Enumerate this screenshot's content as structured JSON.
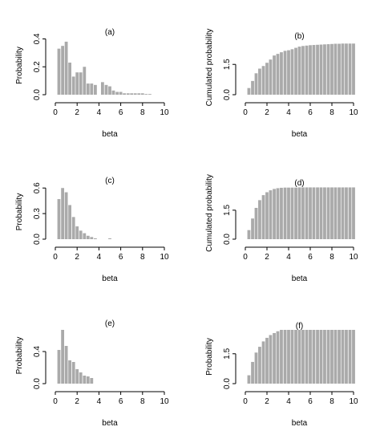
{
  "chart_data": [
    {
      "id": "a",
      "type": "bar",
      "title": "(a)",
      "xlabel": "beta",
      "ylabel": "Probability",
      "xlim": [
        0,
        10
      ],
      "ylim": [
        0,
        0.42
      ],
      "xticks": [
        0,
        2,
        4,
        6,
        8,
        10
      ],
      "yticks": [
        0.0,
        0.2,
        0.4
      ],
      "ytick_labels": [
        "0.0",
        "0.2",
        "0.4"
      ],
      "bar_color": "#aaaaaa",
      "x": [
        0.33,
        0.67,
        1.0,
        1.33,
        1.67,
        2.0,
        2.33,
        2.67,
        3.0,
        3.33,
        3.67,
        4.0,
        4.33,
        4.67,
        5.0,
        5.33,
        5.67,
        6.0,
        6.33,
        6.67,
        7.0,
        7.33,
        7.67,
        8.0,
        8.33,
        8.67
      ],
      "values": [
        0.33,
        0.35,
        0.38,
        0.23,
        0.13,
        0.16,
        0.16,
        0.2,
        0.08,
        0.08,
        0.07,
        0.0,
        0.09,
        0.07,
        0.06,
        0.03,
        0.02,
        0.02,
        0.01,
        0.01,
        0.01,
        0.01,
        0.01,
        0.01,
        0.005,
        0.005
      ]
    },
    {
      "id": "b",
      "type": "bar",
      "title": "(b)",
      "xlabel": "beta",
      "ylabel": "Cumulated probability",
      "xlim": [
        0,
        10
      ],
      "ylim": [
        0,
        2.7
      ],
      "xticks": [
        0,
        2,
        4,
        6,
        8,
        10
      ],
      "yticks": [
        0.0,
        1.5
      ],
      "ytick_labels": [
        "0.0",
        "1.5"
      ],
      "bar_color": "#aaaaaa",
      "x": [
        0.33,
        0.67,
        1.0,
        1.33,
        1.67,
        2.0,
        2.33,
        2.67,
        3.0,
        3.33,
        3.67,
        4.0,
        4.33,
        4.67,
        5.0,
        5.33,
        5.67,
        6.0,
        6.33,
        6.67,
        7.0,
        7.33,
        7.67,
        8.0,
        8.33,
        8.67,
        9.0,
        9.33,
        9.67,
        10.0
      ],
      "values": [
        0.33,
        0.68,
        1.06,
        1.29,
        1.42,
        1.58,
        1.74,
        1.94,
        2.02,
        2.1,
        2.17,
        2.2,
        2.25,
        2.32,
        2.38,
        2.41,
        2.43,
        2.45,
        2.46,
        2.47,
        2.48,
        2.49,
        2.5,
        2.51,
        2.52,
        2.52,
        2.53,
        2.53,
        2.53,
        2.53
      ]
    },
    {
      "id": "c",
      "type": "bar",
      "title": "(c)",
      "xlabel": "beta",
      "ylabel": "Probability",
      "xlim": [
        0,
        10
      ],
      "ylim": [
        0,
        0.64
      ],
      "xticks": [
        0,
        2,
        4,
        6,
        8,
        10
      ],
      "yticks": [
        0.0,
        0.3,
        0.6
      ],
      "ytick_labels": [
        "0.0",
        "0.3",
        "0.6"
      ],
      "bar_color": "#aaaaaa",
      "x": [
        0.33,
        0.67,
        1.0,
        1.33,
        1.67,
        2.0,
        2.33,
        2.67,
        3.0,
        3.33,
        3.67,
        4.0,
        4.33,
        4.67,
        5.0
      ],
      "values": [
        0.47,
        0.6,
        0.55,
        0.4,
        0.26,
        0.15,
        0.1,
        0.07,
        0.04,
        0.025,
        0.01,
        0.0,
        0.0,
        0.0,
        0.01
      ]
    },
    {
      "id": "d",
      "type": "bar",
      "title": "(d)",
      "xlabel": "beta",
      "ylabel": "Cumulated probability",
      "xlim": [
        0,
        10
      ],
      "ylim": [
        0,
        2.7
      ],
      "xticks": [
        0,
        2,
        4,
        6,
        8,
        10
      ],
      "yticks": [
        0.0,
        1.5
      ],
      "ytick_labels": [
        "0.0",
        "1.5"
      ],
      "bar_color": "#aaaaaa",
      "x": [
        0.33,
        0.67,
        1.0,
        1.33,
        1.67,
        2.0,
        2.33,
        2.67,
        3.0,
        3.33,
        3.67,
        4.0,
        4.33,
        4.67,
        5.0,
        5.33,
        5.67,
        6.0,
        6.33,
        6.67,
        7.0,
        7.33,
        7.67,
        8.0,
        8.33,
        8.67,
        9.0,
        9.33,
        9.67,
        10.0
      ],
      "values": [
        0.47,
        1.07,
        1.62,
        2.02,
        2.28,
        2.43,
        2.53,
        2.6,
        2.64,
        2.66,
        2.67,
        2.67,
        2.67,
        2.67,
        2.68,
        2.68,
        2.68,
        2.68,
        2.68,
        2.68,
        2.68,
        2.68,
        2.68,
        2.68,
        2.68,
        2.68,
        2.68,
        2.68,
        2.68,
        2.68
      ]
    },
    {
      "id": "e",
      "type": "bar",
      "title": "(e)",
      "xlabel": "beta",
      "ylabel": "Probability",
      "xlim": [
        0,
        10
      ],
      "ylim": [
        0,
        0.7
      ],
      "xticks": [
        0,
        2,
        4,
        6,
        8,
        10
      ],
      "yticks": [
        0.0,
        0.4
      ],
      "ytick_labels": [
        "0.0",
        "0.4"
      ],
      "bar_color": "#aaaaaa",
      "x": [
        0.33,
        0.67,
        1.0,
        1.33,
        1.67,
        2.0,
        2.33,
        2.67,
        3.0,
        3.33
      ],
      "values": [
        0.42,
        0.67,
        0.47,
        0.29,
        0.27,
        0.18,
        0.14,
        0.1,
        0.09,
        0.07
      ]
    },
    {
      "id": "f",
      "type": "bar",
      "title": "(f)",
      "xlabel": "beta",
      "ylabel": "Probability",
      "xlim": [
        0,
        10
      ],
      "ylim": [
        0,
        2.7
      ],
      "xticks": [
        0,
        2,
        4,
        6,
        8,
        10
      ],
      "yticks": [
        0.0,
        1.5
      ],
      "ytick_labels": [
        "0.0",
        "1.5"
      ],
      "bar_color": "#aaaaaa",
      "x": [
        0.33,
        0.67,
        1.0,
        1.33,
        1.67,
        2.0,
        2.33,
        2.67,
        3.0,
        3.33,
        3.67,
        4.0,
        4.33,
        4.67,
        5.0,
        5.33,
        5.67,
        6.0,
        6.33,
        6.67,
        7.0,
        7.33,
        7.67,
        8.0,
        8.33,
        8.67,
        9.0,
        9.33,
        9.67,
        10.0
      ],
      "values": [
        0.42,
        1.09,
        1.56,
        1.85,
        2.12,
        2.3,
        2.44,
        2.54,
        2.63,
        2.7,
        2.7,
        2.7,
        2.7,
        2.7,
        2.7,
        2.7,
        2.7,
        2.7,
        2.7,
        2.7,
        2.7,
        2.7,
        2.7,
        2.7,
        2.7,
        2.7,
        2.7,
        2.7,
        2.7,
        2.7
      ]
    }
  ]
}
